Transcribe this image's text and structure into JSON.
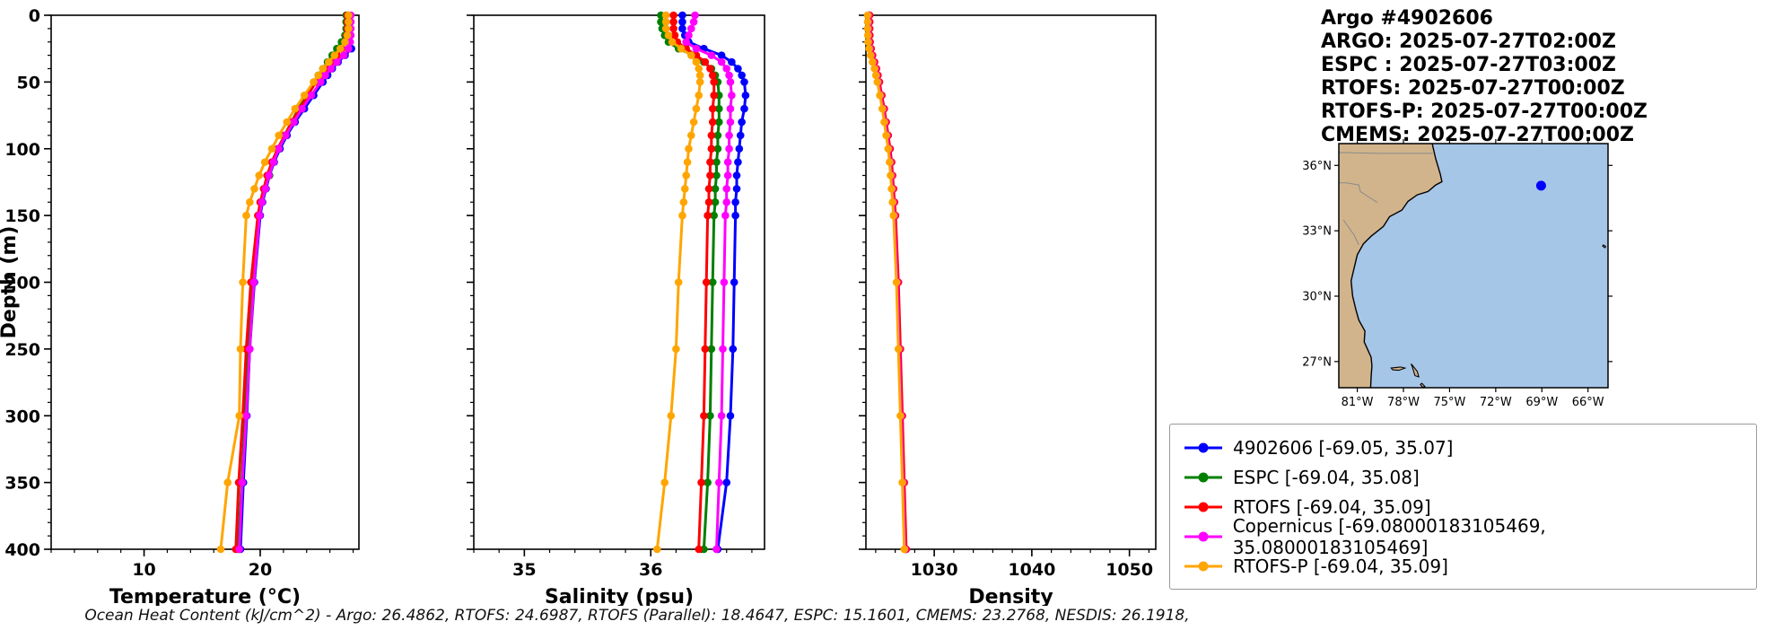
{
  "header": {
    "title": "Argo #4902606",
    "lines": [
      "ARGO: 2025-07-27T02:00Z",
      "ESPC : 2025-07-27T03:00Z",
      "RTOFS: 2025-07-27T00:00Z",
      "RTOFS-P: 2025-07-27T00:00Z",
      "CMEMS: 2025-07-27T00:00Z"
    ]
  },
  "legend": {
    "entries": [
      {
        "label": "4902606 [-69.05, 35.07]",
        "color": "#0000ff"
      },
      {
        "label": "ESPC [-69.04, 35.08]",
        "color": "#008000"
      },
      {
        "label": "RTOFS [-69.04, 35.09]",
        "color": "#ff0000"
      },
      {
        "label": "Copernicus [-69.08000183105469, 35.08000183105469]",
        "color": "#ff00ff"
      },
      {
        "label": "RTOFS-P [-69.04, 35.09]",
        "color": "#ffa500"
      }
    ]
  },
  "caption": "Ocean Heat Content (kJ/cm^2) - Argo: 26.4862,  RTOFS: 24.6987,  RTOFS (Parallel): 18.4647,  ESPC: 15.1601,  CMEMS: 23.2768,  NESDIS: 26.1918,",
  "chart_data": {
    "type": "line",
    "ylabel": "Depth (m)",
    "ylim": [
      0,
      400
    ],
    "yticks": [
      0,
      50,
      100,
      150,
      200,
      250,
      300,
      350,
      400
    ],
    "y_minor_step": 10,
    "depths": [
      0,
      5,
      10,
      15,
      20,
      25,
      30,
      35,
      40,
      45,
      50,
      60,
      70,
      80,
      90,
      100,
      110,
      120,
      130,
      140,
      150,
      200,
      250,
      300,
      350,
      400
    ],
    "panels": [
      {
        "xlabel": "Temperature (°C)",
        "key": "temperature",
        "xlim": [
          2,
          28.5
        ],
        "xticks": [
          10,
          20
        ],
        "minor_step": 2
      },
      {
        "xlabel": "Salinity (psu)",
        "key": "salinity",
        "xlim": [
          34.6,
          36.9
        ],
        "xticks": [
          35,
          36
        ],
        "minor_step": 0.2
      },
      {
        "xlabel": "Density",
        "key": "density",
        "xlim": [
          1023,
          1052.7
        ],
        "xticks": [
          1030,
          1040,
          1050
        ],
        "minor_step": 2
      }
    ],
    "series": [
      {
        "name": "4902606",
        "color": "#0000ff",
        "temperature": [
          27.6,
          27.6,
          27.6,
          27.65,
          27.7,
          27.85,
          27.3,
          26.7,
          26.2,
          25.8,
          25.4,
          24.6,
          23.8,
          23.0,
          22.3,
          21.7,
          21.2,
          20.8,
          20.5,
          20.2,
          20.0,
          19.5,
          19.1,
          18.85,
          18.55,
          18.3
        ],
        "salinity": [
          36.25,
          36.25,
          36.25,
          36.27,
          36.3,
          36.42,
          36.56,
          36.64,
          36.69,
          36.72,
          36.74,
          36.75,
          36.74,
          36.72,
          36.71,
          36.7,
          36.69,
          36.68,
          36.68,
          36.67,
          36.67,
          36.66,
          36.65,
          36.63,
          36.6,
          36.53
        ],
        "density": [
          1023.3,
          1023.3,
          1023.3,
          1023.32,
          1023.35,
          1023.45,
          1023.6,
          1023.8,
          1024.0,
          1024.15,
          1024.3,
          1024.55,
          1024.8,
          1025.0,
          1025.2,
          1025.4,
          1025.55,
          1025.65,
          1025.75,
          1025.85,
          1025.95,
          1026.25,
          1026.45,
          1026.65,
          1026.85,
          1027.05
        ]
      },
      {
        "name": "ESPC",
        "color": "#008000",
        "temperature": [
          27.4,
          27.4,
          27.4,
          27.3,
          27.0,
          26.6,
          26.2,
          25.8,
          25.4,
          25.0,
          24.7,
          24.0,
          23.3,
          22.7,
          22.1,
          21.6,
          21.1,
          20.8,
          20.4,
          20.15,
          19.9,
          19.35,
          19.0,
          18.7,
          18.4,
          18.1
        ],
        "salinity": [
          36.08,
          36.08,
          36.09,
          36.11,
          36.14,
          36.22,
          36.34,
          36.42,
          36.48,
          36.51,
          36.53,
          36.54,
          36.54,
          36.54,
          36.53,
          36.53,
          36.52,
          36.52,
          36.51,
          36.51,
          36.5,
          36.49,
          36.48,
          36.47,
          36.45,
          36.42
        ],
        "density": [
          1023.34,
          1023.34,
          1023.34,
          1023.36,
          1023.39,
          1023.49,
          1023.64,
          1023.84,
          1024.04,
          1024.19,
          1024.34,
          1024.59,
          1024.84,
          1025.04,
          1025.24,
          1025.44,
          1025.59,
          1025.69,
          1025.79,
          1025.89,
          1025.99,
          1026.29,
          1026.49,
          1026.69,
          1026.89,
          1027.09
        ]
      },
      {
        "name": "RTOFS",
        "color": "#ff0000",
        "temperature": [
          27.5,
          27.5,
          27.5,
          27.45,
          27.3,
          27.0,
          26.6,
          26.1,
          25.6,
          25.2,
          24.8,
          24.1,
          23.4,
          22.7,
          22.1,
          21.5,
          21.0,
          20.6,
          20.3,
          20.0,
          19.8,
          19.2,
          18.8,
          18.5,
          18.15,
          17.9
        ],
        "salinity": [
          36.18,
          36.18,
          36.18,
          36.19,
          36.21,
          36.28,
          36.36,
          36.43,
          36.47,
          36.49,
          36.5,
          36.5,
          36.49,
          36.49,
          36.48,
          36.48,
          36.47,
          36.47,
          36.46,
          36.46,
          36.45,
          36.44,
          36.43,
          36.42,
          36.4,
          36.38
        ],
        "density": [
          1023.38,
          1023.38,
          1023.38,
          1023.4,
          1023.43,
          1023.53,
          1023.68,
          1023.88,
          1024.08,
          1024.23,
          1024.38,
          1024.63,
          1024.88,
          1025.08,
          1025.28,
          1025.48,
          1025.63,
          1025.73,
          1025.83,
          1025.93,
          1026.03,
          1026.33,
          1026.53,
          1026.73,
          1026.93,
          1027.13
        ]
      },
      {
        "name": "Copernicus",
        "color": "#ff00ff",
        "temperature": [
          27.8,
          27.8,
          27.8,
          27.8,
          27.75,
          27.6,
          27.2,
          26.6,
          26.1,
          25.6,
          25.2,
          24.4,
          23.6,
          22.9,
          22.2,
          21.6,
          21.15,
          20.75,
          20.45,
          20.15,
          19.95,
          19.45,
          19.1,
          18.8,
          18.45,
          18.2
        ],
        "salinity": [
          36.35,
          36.34,
          36.32,
          36.3,
          36.28,
          36.36,
          36.48,
          36.56,
          36.6,
          36.62,
          36.63,
          36.64,
          36.63,
          36.63,
          36.62,
          36.62,
          36.61,
          36.61,
          36.6,
          36.6,
          36.59,
          36.58,
          36.57,
          36.56,
          36.54,
          36.52
        ],
        "density": [
          1023.26,
          1023.26,
          1023.26,
          1023.28,
          1023.31,
          1023.41,
          1023.56,
          1023.76,
          1023.96,
          1024.11,
          1024.26,
          1024.51,
          1024.76,
          1024.96,
          1025.16,
          1025.36,
          1025.51,
          1025.61,
          1025.71,
          1025.81,
          1025.91,
          1026.21,
          1026.41,
          1026.61,
          1026.81,
          1027.01
        ]
      },
      {
        "name": "RTOFS-P",
        "color": "#ffa500",
        "temperature": [
          27.6,
          27.6,
          27.6,
          27.5,
          27.3,
          26.9,
          26.4,
          25.9,
          25.4,
          25.0,
          24.6,
          23.8,
          23.0,
          22.3,
          21.6,
          21.0,
          20.4,
          19.9,
          19.5,
          19.1,
          18.8,
          18.5,
          18.3,
          18.2,
          17.2,
          16.6
        ],
        "salinity": [
          36.12,
          36.12,
          36.12,
          36.14,
          36.17,
          36.24,
          36.32,
          36.36,
          36.38,
          36.39,
          36.39,
          36.38,
          36.36,
          36.34,
          36.32,
          36.3,
          36.29,
          36.28,
          36.27,
          36.26,
          36.25,
          36.22,
          36.2,
          36.16,
          36.11,
          36.05
        ],
        "density": [
          1023.18,
          1023.18,
          1023.18,
          1023.2,
          1023.23,
          1023.33,
          1023.48,
          1023.68,
          1023.88,
          1024.03,
          1024.18,
          1024.43,
          1024.68,
          1024.88,
          1025.08,
          1025.28,
          1025.43,
          1025.53,
          1025.63,
          1025.73,
          1025.83,
          1026.13,
          1026.33,
          1026.53,
          1026.73,
          1026.93
        ]
      }
    ],
    "map": {
      "extent": {
        "lon": [
          -82.2,
          -64.7
        ],
        "lat": [
          25.8,
          37.0
        ]
      },
      "marker": {
        "lon": -69.05,
        "lat": 35.07,
        "color": "#0000ff"
      },
      "lat_ticks": [
        27,
        30,
        33,
        36
      ],
      "lat_tick_labels": [
        "27°N",
        "30°N",
        "33°N",
        "36°N"
      ],
      "lon_ticks": [
        -81,
        -78,
        -75,
        -72,
        -69,
        -66
      ],
      "lon_tick_labels": [
        "81°W",
        "78°W",
        "75°W",
        "72°W",
        "69°W",
        "66°W"
      ],
      "ocean_color": "#a6c6e8",
      "land_color": "#d2b48c",
      "coast_color": "#000000",
      "border_color": "#8a8a8a",
      "land": [
        [
          -76.2,
          37.3
        ],
        [
          -76.1,
          36.9
        ],
        [
          -75.9,
          36.3
        ],
        [
          -75.6,
          35.6
        ],
        [
          -75.5,
          35.25
        ],
        [
          -75.9,
          35.1
        ],
        [
          -76.4,
          34.8
        ],
        [
          -77.1,
          34.65
        ],
        [
          -77.7,
          34.35
        ],
        [
          -78.1,
          33.95
        ],
        [
          -78.9,
          33.65
        ],
        [
          -79.3,
          33.2
        ],
        [
          -80.1,
          32.75
        ],
        [
          -80.6,
          32.4
        ],
        [
          -81.0,
          31.9
        ],
        [
          -81.2,
          31.3
        ],
        [
          -81.4,
          30.7
        ],
        [
          -81.3,
          30.0
        ],
        [
          -81.1,
          29.4
        ],
        [
          -80.9,
          28.9
        ],
        [
          -80.5,
          28.4
        ],
        [
          -80.55,
          27.9
        ],
        [
          -80.1,
          27.2
        ],
        [
          -80.05,
          26.8
        ],
        [
          -80.1,
          26.3
        ],
        [
          -80.15,
          25.5
        ],
        [
          -83.0,
          25.5
        ],
        [
          -83.0,
          37.3
        ]
      ],
      "islands": [
        [
          [
            -78.8,
            26.7
          ],
          [
            -78.2,
            26.75
          ],
          [
            -77.9,
            26.7
          ],
          [
            -78.3,
            26.6
          ],
          [
            -78.7,
            26.62
          ]
        ],
        [
          [
            -77.5,
            26.9
          ],
          [
            -77.1,
            26.55
          ],
          [
            -77.0,
            26.3
          ],
          [
            -77.25,
            26.35
          ],
          [
            -77.4,
            26.7
          ]
        ],
        [
          [
            -76.8,
            26.0
          ],
          [
            -76.6,
            25.85
          ],
          [
            -76.75,
            25.82
          ],
          [
            -76.9,
            25.95
          ]
        ],
        [
          [
            -65.0,
            32.35
          ],
          [
            -64.85,
            32.28
          ],
          [
            -64.9,
            32.22
          ],
          [
            -65.05,
            32.3
          ]
        ]
      ],
      "borders": [
        [
          [
            -83,
            36.6
          ],
          [
            -79.5,
            36.55
          ],
          [
            -76.1,
            36.55
          ]
        ],
        [
          [
            -83,
            35.2
          ],
          [
            -81.7,
            35.2
          ],
          [
            -80.9,
            35.1
          ],
          [
            -80.8,
            34.8
          ],
          [
            -79.7,
            34.3
          ]
        ],
        [
          [
            -81.9,
            33.5
          ],
          [
            -81.2,
            32.8
          ],
          [
            -80.9,
            32.35
          ]
        ]
      ]
    }
  }
}
